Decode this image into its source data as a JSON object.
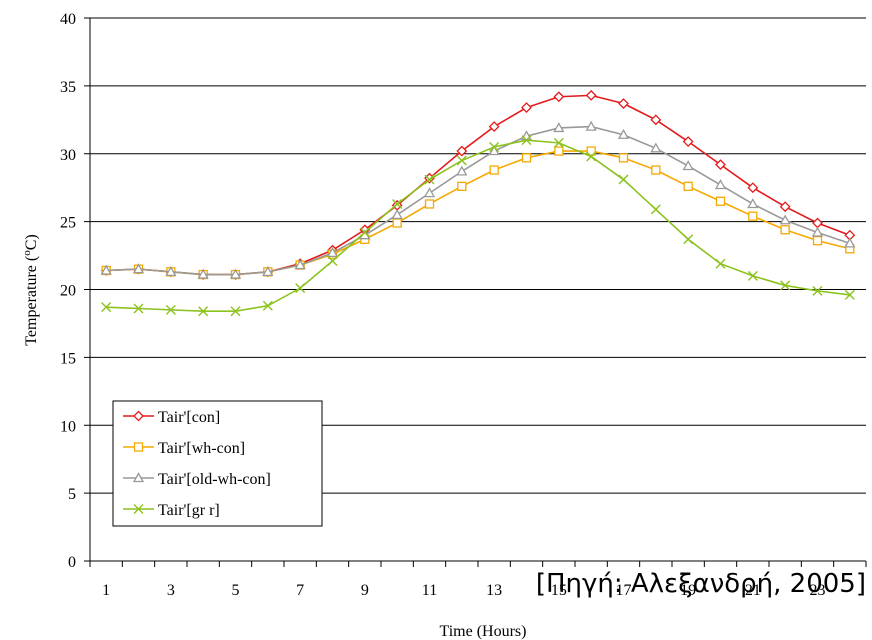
{
  "chart_data": {
    "type": "line",
    "xlabel": "Time (Hours)",
    "ylabel_prefix": "Temperature (",
    "ylabel_sup": "o",
    "ylabel_suffix": "C)",
    "ylim": [
      0,
      40
    ],
    "yticks": [
      0,
      5,
      10,
      15,
      20,
      25,
      30,
      35,
      40
    ],
    "xlim": [
      0.5,
      24.5
    ],
    "xticks": [
      1,
      3,
      5,
      7,
      9,
      11,
      13,
      15,
      17,
      19,
      21,
      23
    ],
    "x": [
      1,
      2,
      3,
      4,
      5,
      6,
      7,
      8,
      9,
      10,
      11,
      12,
      13,
      14,
      15,
      16,
      17,
      18,
      19,
      20,
      21,
      22,
      23,
      24
    ],
    "grid": "horizontal",
    "legend": "bottom-left",
    "series": [
      {
        "name": "Tair'[con]",
        "color": "#e31a1c",
        "marker": "diamond",
        "values": [
          21.4,
          21.5,
          21.3,
          21.1,
          21.1,
          21.3,
          21.9,
          22.9,
          24.4,
          26.2,
          28.2,
          30.2,
          32.0,
          33.4,
          34.2,
          34.3,
          33.7,
          32.5,
          30.9,
          29.2,
          27.5,
          26.1,
          24.9,
          24.0
        ]
      },
      {
        "name": "Tair'[wh-con]",
        "color": "#f5a800",
        "marker": "square",
        "values": [
          21.4,
          21.5,
          21.3,
          21.1,
          21.1,
          21.3,
          21.8,
          22.6,
          23.7,
          24.9,
          26.3,
          27.6,
          28.8,
          29.7,
          30.2,
          30.2,
          29.7,
          28.8,
          27.6,
          26.5,
          25.4,
          24.4,
          23.6,
          23.0
        ]
      },
      {
        "name": "Tair'[old-wh-con]",
        "color": "#999999",
        "marker": "triangle",
        "values": [
          21.4,
          21.5,
          21.3,
          21.1,
          21.1,
          21.3,
          21.8,
          22.7,
          24.0,
          25.5,
          27.1,
          28.7,
          30.2,
          31.3,
          31.9,
          32.0,
          31.4,
          30.4,
          29.1,
          27.7,
          26.3,
          25.1,
          24.2,
          23.4
        ]
      },
      {
        "name": "Tair'[gr r]",
        "color": "#8cc21e",
        "marker": "x",
        "values": [
          18.7,
          18.6,
          18.5,
          18.4,
          18.4,
          18.8,
          20.1,
          22.1,
          24.2,
          26.3,
          28.1,
          29.5,
          30.5,
          31.0,
          30.8,
          29.8,
          28.1,
          25.9,
          23.7,
          21.9,
          21.0,
          20.3,
          19.9,
          19.6
        ]
      }
    ]
  },
  "source_note": "[Πηγή: Αλεξανδρή, 2005]"
}
